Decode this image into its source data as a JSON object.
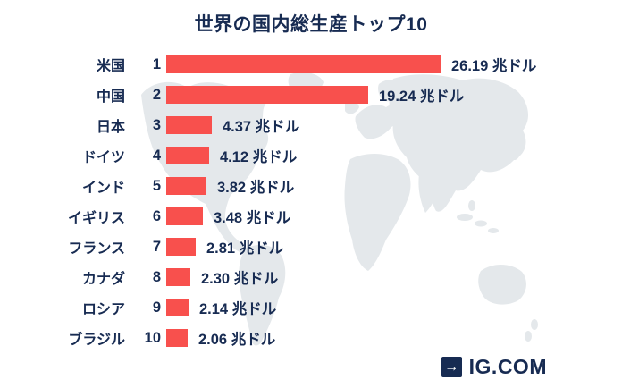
{
  "chart_data": {
    "type": "bar",
    "orientation": "horizontal",
    "title": "世界の国内総生産トップ10",
    "unit": "兆ドル",
    "categories": [
      "米国",
      "中国",
      "日本",
      "ドイツ",
      "インド",
      "イギリス",
      "フランス",
      "カナダ",
      "ロシア",
      "ブラジル"
    ],
    "ranks": [
      "1",
      "2",
      "3",
      "4",
      "5",
      "6",
      "7",
      "8",
      "9",
      "10"
    ],
    "values": [
      26.19,
      19.24,
      4.37,
      4.12,
      3.82,
      3.48,
      2.81,
      2.3,
      2.14,
      2.06
    ],
    "value_labels": [
      "26.19 兆ドル",
      "19.24 兆ドル",
      "4.37 兆ドル",
      "4.12 兆ドル",
      "3.82 兆ドル",
      "3.48 兆ドル",
      "2.81 兆ドル",
      "2.30 兆ドル",
      "2.14 兆ドル",
      "2.06 兆ドル"
    ],
    "xlim": [
      0,
      26.19
    ],
    "grid": false,
    "legend": false,
    "bar_color": "#F8504D",
    "text_color": "#172B52",
    "background": "world-map-silhouette",
    "map_color": "#E4E8EB"
  },
  "footer": {
    "brand": "IG.COM",
    "icon": "arrow-right-icon",
    "brand_color": "#172B52"
  }
}
